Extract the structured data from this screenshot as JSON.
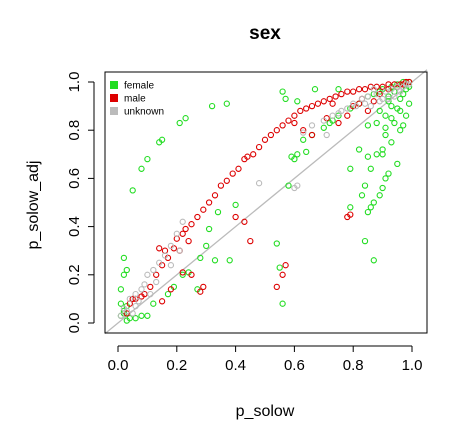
{
  "chart_data": {
    "type": "scatter",
    "title": "sex",
    "xlabel": "p_solow",
    "ylabel": "p_solow_adj",
    "xlim": [
      0,
      1
    ],
    "ylim": [
      0,
      1
    ],
    "x_ticks": [
      "0.0",
      "0.2",
      "0.4",
      "0.6",
      "0.8",
      "1.0"
    ],
    "y_ticks": [
      "0.0",
      "0.2",
      "0.4",
      "0.6",
      "0.8",
      "1.0"
    ],
    "grid": false,
    "legend_position": "top-left",
    "reference_line": "y = x",
    "colors": {
      "female": "#22dd22",
      "male": "#dd0000",
      "unknown": "#bbbbbb",
      "reference_line": "#bbbbbb"
    },
    "series": [
      {
        "name": "female",
        "points": [
          [
            0.14,
            0.75
          ],
          [
            0.15,
            0.76
          ],
          [
            0.21,
            0.83
          ],
          [
            0.23,
            0.85
          ],
          [
            0.32,
            0.9
          ],
          [
            0.37,
            0.91
          ],
          [
            0.56,
            0.96
          ],
          [
            0.57,
            0.93
          ],
          [
            0.61,
            0.92
          ],
          [
            0.67,
            0.97
          ],
          [
            0.75,
            0.97
          ],
          [
            0.08,
            0.64
          ],
          [
            0.1,
            0.68
          ],
          [
            0.05,
            0.55
          ],
          [
            0.01,
            0.14
          ],
          [
            0.02,
            0.2
          ],
          [
            0.02,
            0.27
          ],
          [
            0.03,
            0.22
          ],
          [
            0.01,
            0.08
          ],
          [
            0.02,
            0.05
          ],
          [
            0.03,
            0.07
          ],
          [
            0.01,
            0.03
          ],
          [
            0.02,
            0.04
          ],
          [
            0.04,
            0.02
          ],
          [
            0.06,
            0.02
          ],
          [
            0.08,
            0.03
          ],
          [
            0.1,
            0.03
          ],
          [
            0.03,
            0.01
          ],
          [
            0.12,
            0.08
          ],
          [
            0.17,
            0.12
          ],
          [
            0.19,
            0.15
          ],
          [
            0.22,
            0.2
          ],
          [
            0.24,
            0.21
          ],
          [
            0.27,
            0.14
          ],
          [
            0.28,
            0.27
          ],
          [
            0.3,
            0.32
          ],
          [
            0.31,
            0.39
          ],
          [
            0.34,
            0.46
          ],
          [
            0.4,
            0.49
          ],
          [
            0.33,
            0.26
          ],
          [
            0.38,
            0.26
          ],
          [
            0.54,
            0.33
          ],
          [
            0.56,
            0.08
          ],
          [
            0.55,
            0.23
          ],
          [
            0.59,
            0.69
          ],
          [
            0.61,
            0.7
          ],
          [
            0.63,
            0.76
          ],
          [
            0.66,
            0.78
          ],
          [
            0.7,
            0.81
          ],
          [
            0.72,
            0.83
          ],
          [
            0.73,
            0.84
          ],
          [
            0.75,
            0.86
          ],
          [
            0.79,
            0.89
          ],
          [
            0.82,
            0.91
          ],
          [
            0.85,
            0.94
          ],
          [
            0.87,
            0.95
          ],
          [
            0.89,
            0.96
          ],
          [
            0.9,
            0.97
          ],
          [
            0.93,
            0.98
          ],
          [
            0.95,
            0.99
          ],
          [
            0.97,
            1.0
          ],
          [
            0.99,
            1.0
          ],
          [
            0.92,
            0.92
          ],
          [
            0.93,
            0.85
          ],
          [
            0.94,
            0.83
          ],
          [
            0.96,
            0.8
          ],
          [
            0.91,
            0.78
          ],
          [
            0.9,
            0.72
          ],
          [
            0.88,
            0.7
          ],
          [
            0.85,
            0.69
          ],
          [
            0.86,
            0.64
          ],
          [
            0.9,
            0.56
          ],
          [
            0.91,
            0.6
          ],
          [
            0.92,
            0.62
          ],
          [
            0.95,
            0.66
          ],
          [
            0.83,
            0.53
          ],
          [
            0.84,
            0.57
          ],
          [
            0.86,
            0.48
          ],
          [
            0.85,
            0.46
          ],
          [
            0.87,
            0.5
          ],
          [
            0.79,
            0.48
          ],
          [
            0.9,
            0.7
          ],
          [
            0.93,
            0.75
          ],
          [
            0.96,
            0.88
          ],
          [
            0.97,
            0.82
          ],
          [
            0.98,
            0.86
          ],
          [
            0.99,
            0.91
          ],
          [
            0.97,
            0.95
          ],
          [
            0.94,
            0.96
          ],
          [
            0.87,
            0.26
          ],
          [
            0.84,
            0.34
          ],
          [
            0.89,
            0.53
          ],
          [
            0.79,
            0.64
          ],
          [
            0.82,
            0.72
          ],
          [
            0.6,
            0.68
          ],
          [
            0.64,
            0.71
          ],
          [
            0.58,
            0.57
          ],
          [
            0.99,
            0.98
          ],
          [
            0.91,
            0.81
          ],
          [
            0.98,
            0.97
          ],
          [
            0.92,
            0.94
          ],
          [
            0.95,
            0.89
          ],
          [
            0.93,
            0.9
          ],
          [
            0.96,
            0.93
          ],
          [
            0.88,
            0.83
          ],
          [
            0.85,
            0.82
          ],
          [
            0.89,
            0.88
          ],
          [
            0.91,
            0.86
          ]
        ]
      },
      {
        "name": "male",
        "points": [
          [
            0.03,
            0.04
          ],
          [
            0.04,
            0.08
          ],
          [
            0.05,
            0.1
          ],
          [
            0.06,
            0.1
          ],
          [
            0.08,
            0.11
          ],
          [
            0.09,
            0.12
          ],
          [
            0.11,
            0.15
          ],
          [
            0.13,
            0.2
          ],
          [
            0.15,
            0.24
          ],
          [
            0.17,
            0.27
          ],
          [
            0.19,
            0.31
          ],
          [
            0.2,
            0.35
          ],
          [
            0.22,
            0.37
          ],
          [
            0.23,
            0.39
          ],
          [
            0.25,
            0.41
          ],
          [
            0.27,
            0.44
          ],
          [
            0.29,
            0.47
          ],
          [
            0.31,
            0.5
          ],
          [
            0.33,
            0.53
          ],
          [
            0.35,
            0.57
          ],
          [
            0.37,
            0.59
          ],
          [
            0.39,
            0.62
          ],
          [
            0.41,
            0.64
          ],
          [
            0.43,
            0.68
          ],
          [
            0.44,
            0.69
          ],
          [
            0.46,
            0.7
          ],
          [
            0.48,
            0.73
          ],
          [
            0.5,
            0.76
          ],
          [
            0.52,
            0.78
          ],
          [
            0.54,
            0.8
          ],
          [
            0.56,
            0.82
          ],
          [
            0.58,
            0.84
          ],
          [
            0.6,
            0.86
          ],
          [
            0.62,
            0.88
          ],
          [
            0.64,
            0.89
          ],
          [
            0.66,
            0.9
          ],
          [
            0.68,
            0.91
          ],
          [
            0.7,
            0.92
          ],
          [
            0.72,
            0.93
          ],
          [
            0.74,
            0.94
          ],
          [
            0.76,
            0.95
          ],
          [
            0.78,
            0.96
          ],
          [
            0.8,
            0.96
          ],
          [
            0.82,
            0.97
          ],
          [
            0.84,
            0.97
          ],
          [
            0.86,
            0.98
          ],
          [
            0.88,
            0.98
          ],
          [
            0.9,
            0.98
          ],
          [
            0.92,
            0.99
          ],
          [
            0.94,
            0.99
          ],
          [
            0.96,
            0.99
          ],
          [
            0.98,
            1.0
          ],
          [
            0.99,
            1.0
          ],
          [
            0.15,
            0.09
          ],
          [
            0.18,
            0.14
          ],
          [
            0.22,
            0.21
          ],
          [
            0.25,
            0.2
          ],
          [
            0.28,
            0.13
          ],
          [
            0.29,
            0.15
          ],
          [
            0.21,
            0.3
          ],
          [
            0.24,
            0.34
          ],
          [
            0.16,
            0.3
          ],
          [
            0.14,
            0.31
          ],
          [
            0.4,
            0.44
          ],
          [
            0.43,
            0.42
          ],
          [
            0.45,
            0.34
          ],
          [
            0.57,
            0.24
          ],
          [
            0.56,
            0.2
          ],
          [
            0.54,
            0.15
          ],
          [
            0.78,
            0.44
          ],
          [
            0.79,
            0.45
          ],
          [
            0.66,
            0.78
          ],
          [
            0.75,
            0.83
          ],
          [
            0.78,
            0.86
          ],
          [
            0.82,
            0.91
          ],
          [
            0.85,
            0.88
          ],
          [
            0.87,
            0.92
          ],
          [
            0.8,
            0.9
          ],
          [
            0.89,
            0.95
          ],
          [
            0.92,
            0.97
          ],
          [
            0.95,
            0.98
          ],
          [
            0.97,
            0.99
          ],
          [
            0.83,
            0.93
          ],
          [
            0.6,
            0.83
          ],
          [
            0.63,
            0.8
          ],
          [
            0.73,
            0.91
          ],
          [
            0.71,
            0.85
          ]
        ]
      },
      {
        "name": "unknown",
        "points": [
          [
            0.01,
            0.03
          ],
          [
            0.02,
            0.06
          ],
          [
            0.03,
            0.05
          ],
          [
            0.05,
            0.04
          ],
          [
            0.06,
            0.07
          ],
          [
            0.07,
            0.09
          ],
          [
            0.08,
            0.14
          ],
          [
            0.09,
            0.16
          ],
          [
            0.1,
            0.2
          ],
          [
            0.12,
            0.22
          ],
          [
            0.14,
            0.25
          ],
          [
            0.16,
            0.28
          ],
          [
            0.18,
            0.32
          ],
          [
            0.2,
            0.37
          ],
          [
            0.22,
            0.42
          ],
          [
            0.48,
            0.58
          ],
          [
            0.6,
            0.56
          ],
          [
            0.61,
            0.57
          ],
          [
            0.63,
            0.79
          ],
          [
            0.66,
            0.82
          ],
          [
            0.7,
            0.84
          ],
          [
            0.71,
            0.78
          ],
          [
            0.73,
            0.86
          ],
          [
            0.75,
            0.87
          ],
          [
            0.78,
            0.89
          ],
          [
            0.8,
            0.91
          ],
          [
            0.83,
            0.93
          ],
          [
            0.85,
            0.94
          ],
          [
            0.88,
            0.95
          ],
          [
            0.91,
            0.96
          ],
          [
            0.93,
            0.97
          ],
          [
            0.95,
            0.98
          ],
          [
            0.97,
            0.98
          ],
          [
            0.98,
            0.99
          ],
          [
            0.99,
            0.99
          ],
          [
            0.96,
            0.96
          ],
          [
            0.94,
            0.94
          ],
          [
            0.9,
            0.93
          ],
          [
            0.04,
            0.1
          ],
          [
            0.06,
            0.12
          ],
          [
            0.11,
            0.12
          ],
          [
            0.13,
            0.17
          ],
          [
            0.18,
            0.24
          ],
          [
            0.21,
            0.3
          ],
          [
            0.86,
            0.9
          ],
          [
            0.89,
            0.92
          ],
          [
            0.92,
            0.93
          ],
          [
            0.76,
            0.88
          ],
          [
            0.81,
            0.9
          ],
          [
            0.84,
            0.91
          ],
          [
            0.87,
            0.97
          ]
        ]
      }
    ]
  }
}
